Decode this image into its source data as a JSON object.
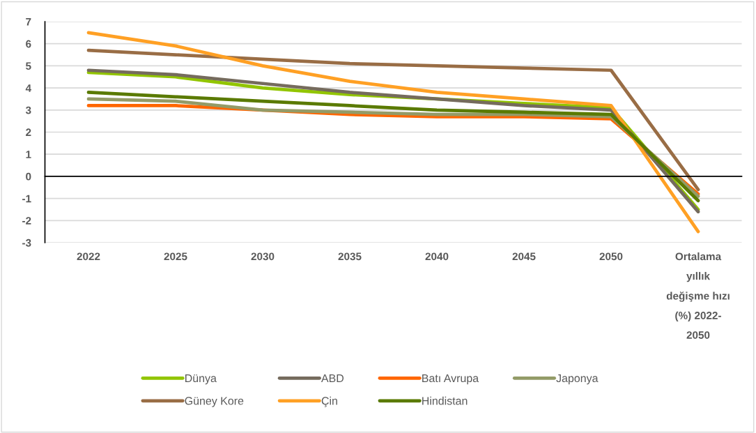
{
  "chart_data": {
    "type": "line",
    "categories": [
      "2022",
      "2025",
      "2030",
      "2035",
      "2040",
      "2045",
      "2050",
      "Ortalama\nyıllık\ndeğişme hızı\n(%) 2022-\n2050"
    ],
    "series": [
      {
        "name": "Dünya",
        "color": "#92c500",
        "values": [
          4.7,
          4.5,
          4.0,
          3.7,
          3.5,
          3.3,
          3.1,
          -1.5
        ]
      },
      {
        "name": "ABD",
        "color": "#756b5d",
        "values": [
          4.8,
          4.6,
          4.2,
          3.8,
          3.5,
          3.2,
          3.0,
          -1.6
        ]
      },
      {
        "name": "Batı Avrupa",
        "color": "#ff6600",
        "values": [
          3.2,
          3.2,
          3.0,
          2.8,
          2.7,
          2.7,
          2.6,
          -0.8
        ]
      },
      {
        "name": "Japonya",
        "color": "#939b67",
        "values": [
          3.5,
          3.4,
          3.0,
          2.9,
          2.8,
          2.8,
          2.7,
          -0.9
        ]
      },
      {
        "name": "Güney Kore",
        "color": "#996d45",
        "values": [
          5.7,
          5.5,
          5.3,
          5.1,
          5.0,
          4.9,
          4.8,
          -0.6
        ]
      },
      {
        "name": "Çin",
        "color": "#ffa024",
        "values": [
          6.5,
          5.9,
          5.0,
          4.3,
          3.8,
          3.5,
          3.2,
          -2.5
        ]
      },
      {
        "name": "Hindistan",
        "color": "#5a7a00",
        "values": [
          3.8,
          3.6,
          3.4,
          3.2,
          3.0,
          2.9,
          2.8,
          -1.1
        ]
      }
    ],
    "ylim": [
      -3,
      7
    ],
    "yticks": [
      -3,
      -2,
      -1,
      0,
      1,
      2,
      3,
      4,
      5,
      6,
      7
    ],
    "grid": "y",
    "legend": "bottom"
  }
}
